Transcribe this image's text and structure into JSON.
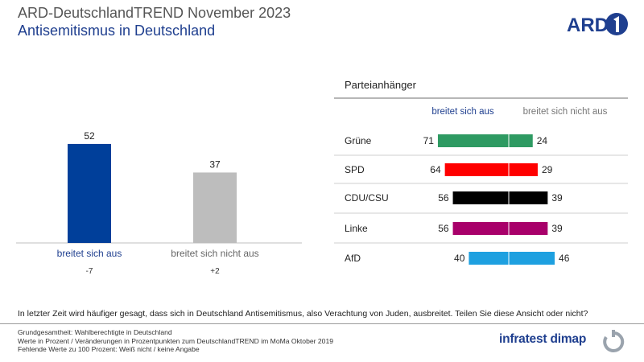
{
  "header": {
    "title": "ARD-DeutschlandTREND November 2023",
    "subtitle": "Antisemitismus in Deutschland",
    "logo_text": "ARD"
  },
  "colors": {
    "accent_blue": "#1f3f8f",
    "left_bar_1": "#003f9a",
    "left_bar_2": "#bdbdbd"
  },
  "chart_data": [
    {
      "type": "bar",
      "categories": [
        "breitet sich aus",
        "breitet sich nicht aus"
      ],
      "values": [
        52,
        37
      ],
      "changes": [
        "-7",
        "+2"
      ],
      "colors": [
        "#003f9a",
        "#bdbdbd"
      ],
      "ylim": [
        0,
        60
      ]
    },
    {
      "type": "bar",
      "orientation": "diverging-horizontal",
      "title": "Parteianhänger",
      "series_labels": [
        "breitet sich aus",
        "breitet sich nicht aus"
      ],
      "categories": [
        "Grüne",
        "SPD",
        "CDU/CSU",
        "Linke",
        "AfD"
      ],
      "series": [
        {
          "name": "breitet sich aus",
          "values": [
            71,
            64,
            56,
            56,
            40
          ]
        },
        {
          "name": "breitet sich nicht aus",
          "values": [
            24,
            29,
            39,
            39,
            46
          ]
        }
      ],
      "colors": [
        "#2e9a62",
        "#ff0000",
        "#000000",
        "#a8006a",
        "#1ea0e0"
      ]
    }
  ],
  "question": "In letzter Zeit wird häufiger gesagt, dass sich in Deutschland Antisemitismus, also Verachtung von Juden, ausbreitet. Teilen Sie diese Ansicht oder nicht?",
  "footnotes": [
    "Grundgesamtheit:  Wahlberechtigte in Deutschland",
    "Werte in Prozent / Veränderungen  in Prozentpunkten zum DeutschlandTREND  im MoMa Oktober 2019",
    "Fehlende  Werte zu 100 Prozent: Weiß nicht / keine Angabe"
  ],
  "brand": {
    "infratest": "infratest dimap"
  }
}
